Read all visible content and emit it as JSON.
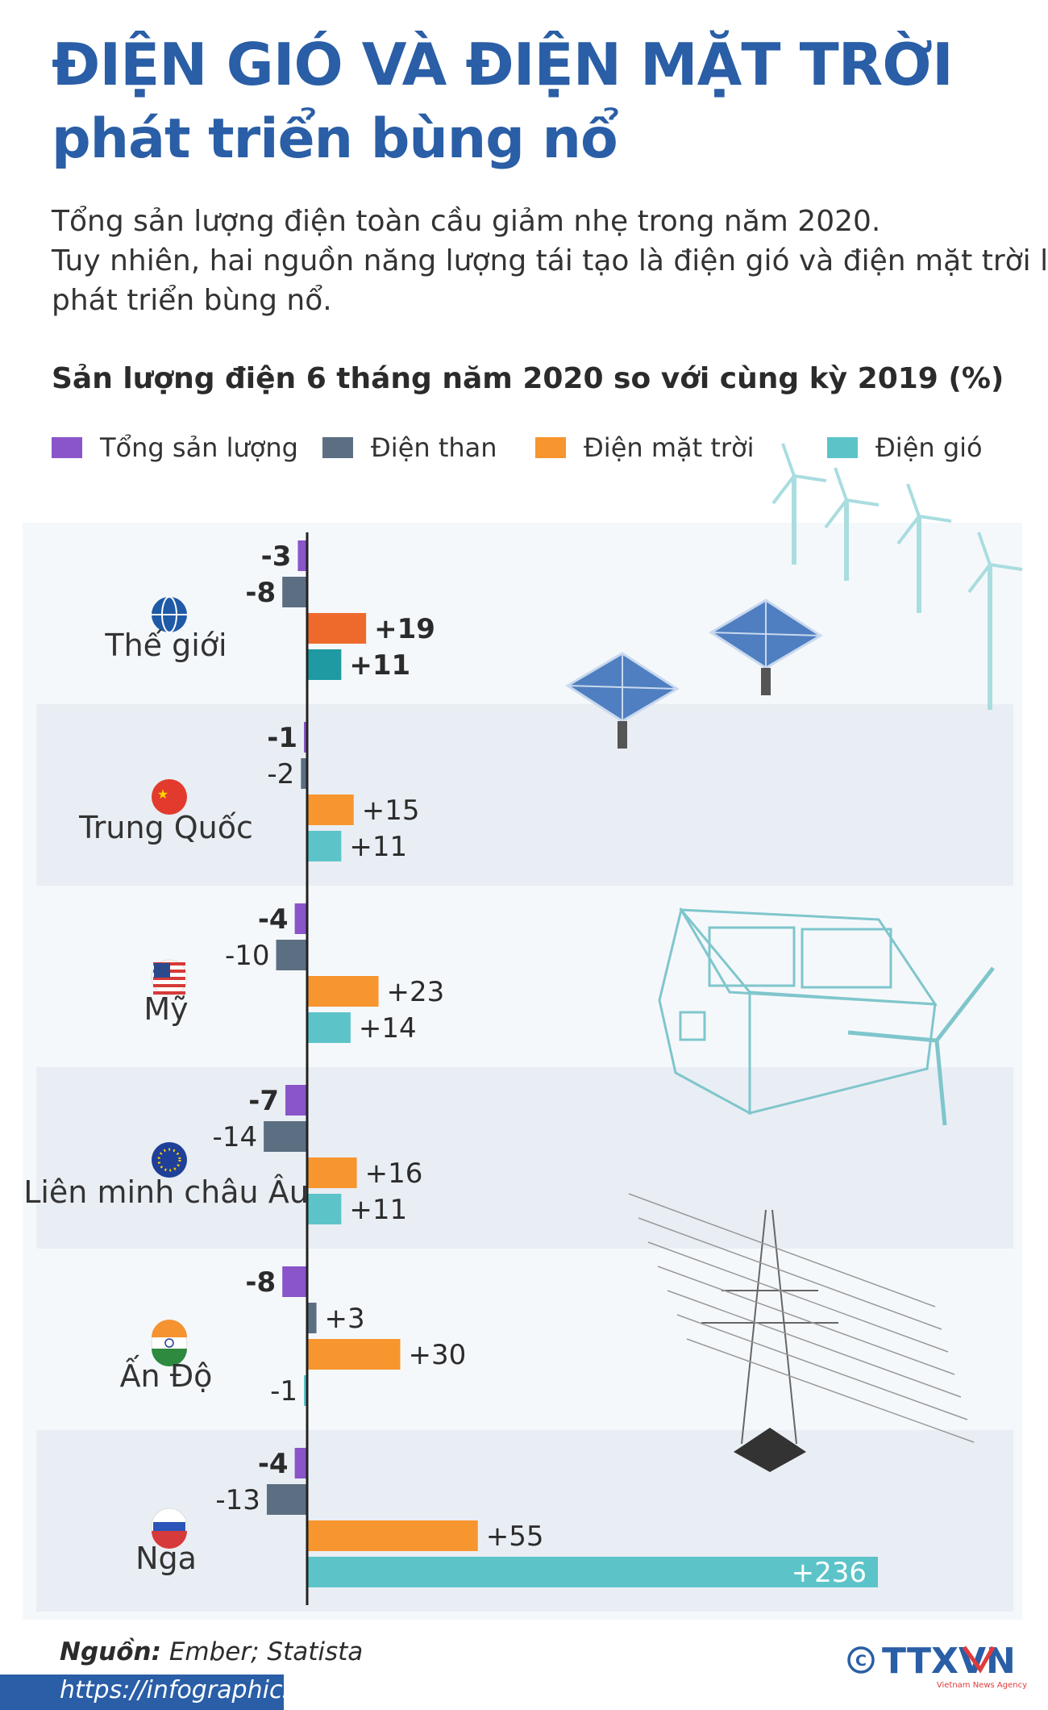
{
  "title_line1": "ĐIỆN GIÓ VÀ ĐIỆN MẶT TRỜI",
  "title_line2": "phát triển bùng nổ",
  "intro_lines": [
    "Tổng sản lượng điện toàn cầu giảm nhẹ trong năm 2020.",
    "Tuy nhiên, hai nguồn năng lượng tái tạo là điện gió và điện mặt trời lại",
    "phát triển bùng nổ."
  ],
  "chart_title": "Sản lượng điện 6 tháng năm 2020 so với cùng kỳ 2019 (%)",
  "legend": [
    {
      "label": "Tổng sản lượng",
      "color": "#8a55c9"
    },
    {
      "label": "Điện than",
      "color": "#5c6f82"
    },
    {
      "label": "Điện mặt trời",
      "color": "#f7952e"
    },
    {
      "label": "Điện gió",
      "color": "#5cc4c9"
    }
  ],
  "source_label": "Nguồn:",
  "source_text": "Ember; Statista",
  "url": "https://infographics.vn",
  "logo_text": "TTXVN",
  "logo_sub": "Vietnam News Agency",
  "chart_data": {
    "type": "bar",
    "orientation": "horizontal",
    "title": "Sản lượng điện 6 tháng năm 2020 so với cùng kỳ 2019 (%)",
    "unit": "%",
    "categories": [
      "Thế giới",
      "Trung Quốc",
      "Mỹ",
      "Liên minh châu Âu",
      "Ấn Độ",
      "Nga"
    ],
    "series": [
      {
        "name": "Tổng sản lượng",
        "color": "#8a55c9",
        "values": [
          -3,
          -1,
          -4,
          -7,
          -8,
          -4
        ],
        "labels": [
          "-3",
          "-1",
          "-4",
          "-7",
          "-8",
          "-4"
        ]
      },
      {
        "name": "Điện than",
        "color": "#5c6f82",
        "values": [
          -8,
          -2,
          -10,
          -14,
          3,
          -13
        ],
        "labels": [
          "-8",
          "-2",
          "-10",
          "-14",
          "+3",
          "-13"
        ]
      },
      {
        "name": "Điện mặt trời",
        "color": "#f7952e",
        "values": [
          19,
          15,
          23,
          16,
          30,
          55
        ],
        "labels": [
          "+19",
          "+15",
          "+23",
          "+16",
          "+30",
          "+55"
        ]
      },
      {
        "name": "Điện gió",
        "color": "#5cc4c9",
        "values": [
          11,
          11,
          14,
          11,
          -1,
          236
        ],
        "labels": [
          "+11",
          "+11",
          "+14",
          "+11",
          "-1",
          "+236"
        ]
      }
    ],
    "world_colors": {
      "solar": "#ee6a2c",
      "wind": "#1f9aa3"
    },
    "grid": false,
    "legend_position": "top"
  }
}
